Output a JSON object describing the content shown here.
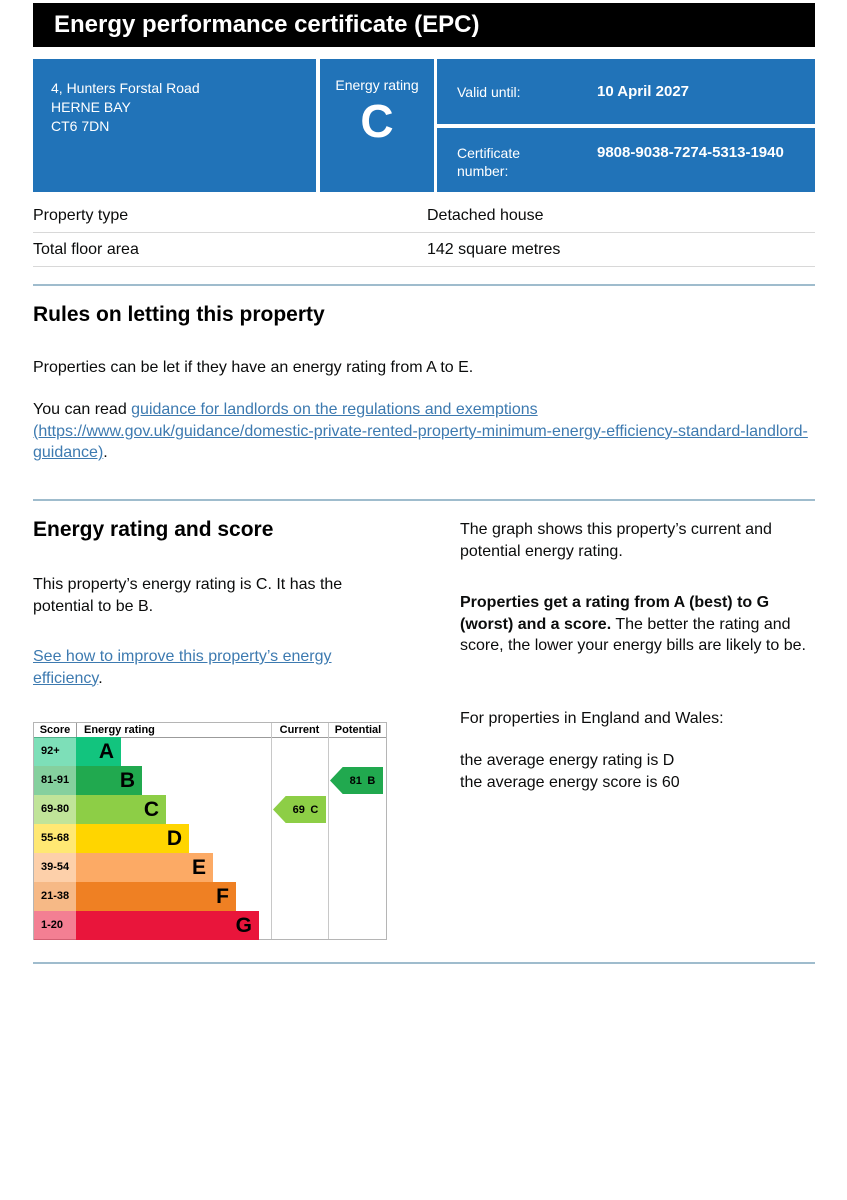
{
  "title_bar": {
    "text": "Energy performance certificate (EPC)"
  },
  "summary_panel": {
    "bg": "#2173b8",
    "address_line1": "4, Hunters Forstal Road",
    "address_line2": "HERNE BAY",
    "address_line3": "CT6 7DN",
    "energy_rating_label": "Energy rating",
    "energy_rating_value": "C",
    "valid_until_label": "Valid until:",
    "valid_until_value": "10 April 2027",
    "certificate_number_label": "Certificate number:",
    "certificate_number_value": "9808-9038-7274-5313-1940"
  },
  "property_details": {
    "rows": [
      {
        "label": "Property type",
        "value": "Detached house"
      },
      {
        "label": "Total floor area",
        "value": "142 square metres"
      }
    ]
  },
  "rules_section": {
    "heading": "Rules on letting this property",
    "paragraph": "Properties can be let if they have an energy rating from A to E.",
    "read_prefix": "You can read ",
    "link_text": "guidance for landlords on the regulations and exemptions (https://www.gov.uk/guidance/domestic-private-rented-property-minimum-energy-efficiency-standard-landlord-guidance)",
    "read_suffix": "."
  },
  "rating_section": {
    "heading": "Energy rating and score",
    "intro": "This property’s energy rating is C. It has the potential to be B.",
    "improve_link": "See how to improve this property’s energy efficiency",
    "improve_suffix": ".",
    "right_para1": "The graph shows this property’s current and potential energy rating.",
    "right_para2_bold": "Properties get a rating from A (best) to G (worst) and a score.",
    "right_para2_rest": " The better the rating and score, the lower your energy bills are likely to be.",
    "right_para3": "For properties in England and Wales:",
    "right_para4_line1": "the average energy rating is D",
    "right_para4_line2": "the average energy score is 60"
  },
  "chart_data": {
    "type": "bar",
    "title": "",
    "columns": [
      "Score",
      "Energy rating",
      "Current",
      "Potential"
    ],
    "bands": [
      {
        "letter": "A",
        "score_range": "92+",
        "color": "#12c47e",
        "bar_pct": 23
      },
      {
        "letter": "B",
        "score_range": "81-91",
        "color": "#21a94f",
        "bar_pct": 34
      },
      {
        "letter": "C",
        "score_range": "69-80",
        "color": "#8dce46",
        "bar_pct": 46
      },
      {
        "letter": "D",
        "score_range": "55-68",
        "color": "#ffd500",
        "bar_pct": 58
      },
      {
        "letter": "E",
        "score_range": "39-54",
        "color": "#fcaa65",
        "bar_pct": 70
      },
      {
        "letter": "F",
        "score_range": "21-38",
        "color": "#ef8023",
        "bar_pct": 82
      },
      {
        "letter": "G",
        "score_range": "1-20",
        "color": "#e9153b",
        "bar_pct": 94
      }
    ],
    "current": {
      "score": 69,
      "band": "C"
    },
    "potential": {
      "score": 81,
      "band": "B"
    }
  },
  "colors": {
    "panel_blue": "#2173b8",
    "divider_blue": "#9fbccd",
    "link_blue": "#3d7ab0"
  }
}
